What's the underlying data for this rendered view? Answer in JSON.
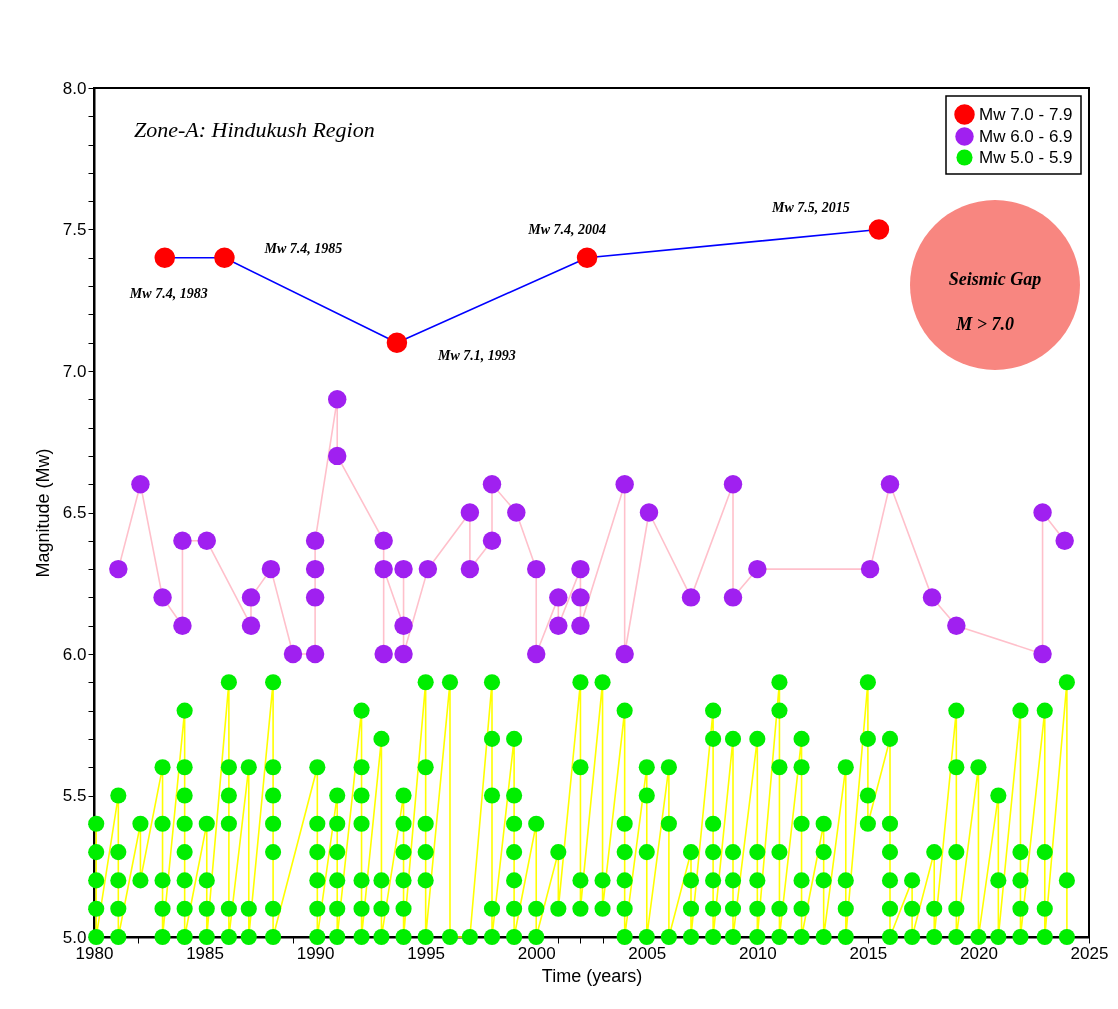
{
  "chart_data": {
    "type": "line",
    "marker": "circle",
    "legend": "top right",
    "xlabel": "Time (years)",
    "ylabel": "Magnitude (Mw)",
    "xlim": [
      1980,
      2025
    ],
    "ylim": [
      5,
      8
    ],
    "xticks": [
      1980,
      {
        "value": 1981,
        "label": null
      },
      {
        "value": 1982,
        "label": null
      },
      {
        "value": 1983,
        "label": null
      },
      {
        "value": 1984,
        "label": null
      },
      1985,
      {
        "value": 1986,
        "label": null
      },
      {
        "value": 1987,
        "label": null
      },
      {
        "value": 1988,
        "label": null
      },
      {
        "value": 1989,
        "label": null
      },
      1990,
      {
        "value": 1991,
        "label": null
      },
      {
        "value": 1992,
        "label": null
      },
      {
        "value": 1993,
        "label": null
      },
      {
        "value": 1994,
        "label": null
      },
      1995,
      {
        "value": 1996,
        "label": null
      },
      {
        "value": 1997,
        "label": null
      },
      {
        "value": 1998,
        "label": null
      },
      {
        "value": 1999,
        "label": null
      },
      2000,
      {
        "value": 2001,
        "label": null
      },
      {
        "value": 2002,
        "label": null
      },
      {
        "value": 2003,
        "label": null
      },
      {
        "value": 2004,
        "label": null
      },
      2005,
      {
        "value": 2006,
        "label": null
      },
      {
        "value": 2007,
        "label": null
      },
      {
        "value": 2008,
        "label": null
      },
      {
        "value": 2009,
        "label": null
      },
      2010,
      {
        "value": 2011,
        "label": null
      },
      {
        "value": 2012,
        "label": null
      },
      {
        "value": 2013,
        "label": null
      },
      {
        "value": 2014,
        "label": null
      },
      2015,
      {
        "value": 2016,
        "label": null
      },
      {
        "value": 2017,
        "label": null
      },
      {
        "value": 2018,
        "label": null
      },
      {
        "value": 2019,
        "label": null
      },
      2020,
      {
        "value": 2021,
        "label": null
      },
      {
        "value": 2022,
        "label": null
      },
      {
        "value": 2023,
        "label": null
      },
      {
        "value": 2024,
        "label": null
      },
      2025
    ],
    "yticks": [
      {
        "value": 5,
        "label": "5.0"
      },
      {
        "value": 5.1,
        "label": null
      },
      {
        "value": 5.2,
        "label": null
      },
      {
        "value": 5.3,
        "label": null
      },
      {
        "value": 5.4,
        "label": null
      },
      {
        "value": 5.5,
        "label": "5.5"
      },
      {
        "value": 5.6,
        "label": null
      },
      {
        "value": 5.7,
        "label": null
      },
      {
        "value": 5.8,
        "label": null
      },
      {
        "value": 5.9,
        "label": null
      },
      {
        "value": 6,
        "label": "6.0"
      },
      {
        "value": 6.1,
        "label": null
      },
      {
        "value": 6.2,
        "label": null
      },
      {
        "value": 6.3,
        "label": null
      },
      {
        "value": 6.4,
        "label": null
      },
      {
        "value": 6.5,
        "label": "6.5"
      },
      {
        "value": 6.6,
        "label": null
      },
      {
        "value": 6.7,
        "label": null
      },
      {
        "value": 6.8,
        "label": null
      },
      {
        "value": 6.9,
        "label": null
      },
      {
        "value": 7,
        "label": "7.0"
      },
      {
        "value": 7.1,
        "label": null
      },
      {
        "value": 7.2,
        "label": null
      },
      {
        "value": 7.3,
        "label": null
      },
      {
        "value": 7.4,
        "label": null
      },
      {
        "value": 7.5,
        "label": "7.5"
      },
      {
        "value": 7.6,
        "label": null
      },
      {
        "value": 7.7,
        "label": null
      },
      {
        "value": 7.8,
        "label": null
      },
      {
        "value": 7.9,
        "label": null
      },
      {
        "value": 8,
        "label": "8.0"
      }
    ],
    "series": [
      {
        "name": "Mw 7.0 - 7.9",
        "color": "#ff0000",
        "x": [
          1983.2,
          1985.9,
          1993.7,
          2002.3,
          2015.5
        ],
        "values": [
          7.4,
          7.4,
          7.1,
          7.4,
          7.5
        ]
      },
      {
        "name": "Mw 6.0 - 6.9",
        "color": "#a020f0",
        "x": [
          1981.1,
          1982.1,
          1983.1,
          1984.0,
          1984.0,
          1985.1,
          1987.1,
          1987.1,
          1988.0,
          1989.0,
          1990.0,
          1990.0,
          1990.0,
          1990.0,
          1991.0,
          1991.0,
          1993.1,
          1993.1,
          1993.1,
          1994.0,
          1994.0,
          1994.0,
          1995.1,
          1997.0,
          1997.0,
          1998.0,
          1998.0,
          1999.1,
          2000.0,
          2000.0,
          2001.0,
          2001.0,
          2002.0,
          2002.0,
          2002.0,
          2004.0,
          2004.0,
          2005.1,
          2007.0,
          2008.9,
          2008.9,
          2010.0,
          2015.1,
          2016.0,
          2017.9,
          2019.0,
          2022.9,
          2022.9,
          2023.9
        ],
        "values": [
          6.3,
          6.6,
          6.2,
          6.1,
          6.4,
          6.4,
          6.1,
          6.2,
          6.3,
          6.0,
          6.0,
          6.2,
          6.3,
          6.4,
          6.9,
          6.7,
          6.4,
          6.0,
          6.3,
          6.1,
          6.3,
          6.0,
          6.3,
          6.5,
          6.3,
          6.4,
          6.6,
          6.5,
          6.3,
          6.0,
          6.2,
          6.1,
          6.3,
          6.2,
          6.1,
          6.6,
          6.0,
          6.5,
          6.2,
          6.6,
          6.2,
          6.3,
          6.3,
          6.6,
          6.2,
          6.1,
          6.0,
          6.5,
          6.4
        ]
      },
      {
        "name": "Mw 5.0 - 5.9",
        "color": "#00ee00",
        "x": [
          1980.1,
          1980.1,
          1980.1,
          1980.1,
          1980.1,
          1981.1,
          1981.1,
          1981.1,
          1981.1,
          1981.1,
          1982.1,
          1982.1,
          1983.1,
          1983.1,
          1983.1,
          1983.1,
          1983.1,
          1984.1,
          1984.1,
          1984.1,
          1984.1,
          1984.1,
          1984.1,
          1984.1,
          1984.1,
          1985.1,
          1985.1,
          1985.1,
          1985.1,
          1986.1,
          1986.1,
          1986.1,
          1986.1,
          1986.1,
          1986.1,
          1987.0,
          1987.0,
          1987.0,
          1988.1,
          1988.1,
          1988.1,
          1988.1,
          1988.1,
          1988.1,
          1988.1,
          1990.1,
          1990.1,
          1990.1,
          1990.1,
          1990.1,
          1990.1,
          1991.0,
          1991.0,
          1991.0,
          1991.0,
          1991.0,
          1991.0,
          1992.1,
          1992.1,
          1992.1,
          1992.1,
          1992.1,
          1992.1,
          1992.1,
          1993.0,
          1993.0,
          1993.0,
          1993.0,
          1994.0,
          1994.0,
          1994.0,
          1994.0,
          1994.0,
          1994.0,
          1995.0,
          1995.0,
          1995.0,
          1995.0,
          1995.0,
          1995.0,
          1996.1,
          1996.1,
          1997.0,
          1998.0,
          1998.0,
          1998.0,
          1998.0,
          1998.0,
          1999.0,
          1999.0,
          1999.0,
          1999.0,
          1999.0,
          1999.0,
          1999.0,
          2000.0,
          2000.0,
          2000.0,
          2001.0,
          2001.0,
          2002.0,
          2002.0,
          2002.0,
          2002.0,
          2003.0,
          2003.0,
          2003.0,
          2004.0,
          2004.0,
          2004.0,
          2004.0,
          2004.0,
          2004.0,
          2005.0,
          2005.0,
          2005.0,
          2005.0,
          2006.0,
          2006.0,
          2006.0,
          2007.0,
          2007.0,
          2007.0,
          2007.0,
          2008.0,
          2008.0,
          2008.0,
          2008.0,
          2008.0,
          2008.0,
          2008.0,
          2008.9,
          2008.9,
          2008.9,
          2008.9,
          2008.9,
          2010.0,
          2010.0,
          2010.0,
          2010.0,
          2010.0,
          2011.0,
          2011.0,
          2011.0,
          2011.0,
          2011.0,
          2011.0,
          2012.0,
          2012.0,
          2012.0,
          2012.0,
          2012.0,
          2012.0,
          2013.0,
          2013.0,
          2013.0,
          2013.0,
          2014.0,
          2014.0,
          2014.0,
          2014.0,
          2015.0,
          2015.0,
          2015.0,
          2015.0,
          2016.0,
          2016.0,
          2016.0,
          2016.0,
          2016.0,
          2016.0,
          2017.0,
          2017.0,
          2017.0,
          2018.0,
          2018.0,
          2018.0,
          2019.0,
          2019.0,
          2019.0,
          2019.0,
          2019.0,
          2020.0,
          2020.0,
          2020.9,
          2020.9,
          2020.9,
          2021.9,
          2021.9,
          2021.9,
          2021.9,
          2021.9,
          2023.0,
          2023.0,
          2023.0,
          2023.0,
          2024.0,
          2024.0,
          2024.0
        ],
        "values": [
          5.4,
          5.3,
          5.2,
          5.1,
          5.0,
          5.5,
          5.3,
          5.2,
          5.1,
          5.0,
          5.4,
          5.2,
          5.6,
          5.4,
          5.2,
          5.1,
          5.0,
          5.8,
          5.6,
          5.5,
          5.4,
          5.3,
          5.2,
          5.1,
          5.0,
          5.4,
          5.2,
          5.1,
          5.0,
          5.9,
          5.6,
          5.5,
          5.4,
          5.1,
          5.0,
          5.6,
          5.1,
          5.0,
          5.9,
          5.6,
          5.5,
          5.4,
          5.3,
          5.1,
          5.0,
          5.6,
          5.4,
          5.3,
          5.2,
          5.1,
          5.0,
          5.5,
          5.4,
          5.3,
          5.2,
          5.1,
          5.0,
          5.8,
          5.6,
          5.5,
          5.4,
          5.2,
          5.1,
          5.0,
          5.7,
          5.2,
          5.1,
          5.0,
          5.5,
          5.4,
          5.3,
          5.2,
          5.1,
          5.0,
          5.9,
          5.6,
          5.4,
          5.3,
          5.2,
          5.0,
          5.9,
          5.0,
          5.0,
          5.9,
          5.7,
          5.5,
          5.1,
          5.0,
          5.7,
          5.5,
          5.4,
          5.3,
          5.2,
          5.1,
          5.0,
          5.4,
          5.1,
          5.0,
          5.3,
          5.1,
          5.9,
          5.6,
          5.2,
          5.1,
          5.9,
          5.2,
          5.1,
          5.8,
          5.4,
          5.3,
          5.2,
          5.1,
          5.0,
          5.6,
          5.5,
          5.3,
          5.0,
          5.6,
          5.4,
          5.0,
          5.3,
          5.2,
          5.1,
          5.0,
          5.8,
          5.7,
          5.4,
          5.3,
          5.2,
          5.1,
          5.0,
          5.7,
          5.3,
          5.2,
          5.1,
          5.0,
          5.7,
          5.3,
          5.2,
          5.1,
          5.0,
          5.9,
          5.8,
          5.6,
          5.3,
          5.1,
          5.0,
          5.7,
          5.6,
          5.4,
          5.2,
          5.1,
          5.0,
          5.4,
          5.3,
          5.2,
          5.0,
          5.6,
          5.2,
          5.1,
          5.0,
          5.9,
          5.7,
          5.5,
          5.4,
          5.7,
          5.4,
          5.3,
          5.2,
          5.1,
          5.0,
          5.2,
          5.1,
          5.0,
          5.3,
          5.1,
          5.0,
          5.8,
          5.6,
          5.3,
          5.1,
          5.0,
          5.6,
          5.0,
          5.5,
          5.2,
          5.0,
          5.8,
          5.3,
          5.2,
          5.1,
          5.0,
          5.8,
          5.3,
          5.1,
          5.0,
          5.9,
          5.2,
          5.0
        ]
      }
    ],
    "annotations": [
      "Zone-A: Hindukush Region",
      "Seismic Gap",
      "M > 7.0",
      {
        "text": "Mw 7.4, 1983",
        "x": 1983.2,
        "y": 7.4
      },
      {
        "text": "Mw 7.4, 1985",
        "x": 1985.9,
        "y": 7.4
      },
      {
        "text": "Mw 7.1, 1993",
        "x": 1993.7,
        "y": 7.1
      },
      {
        "text": "Mw 7.4, 2004",
        "x": 2002.3,
        "y": 7.4
      },
      {
        "text": "Mw 7.5, 2015",
        "x": 2015.5,
        "y": 7.5
      }
    ]
  }
}
